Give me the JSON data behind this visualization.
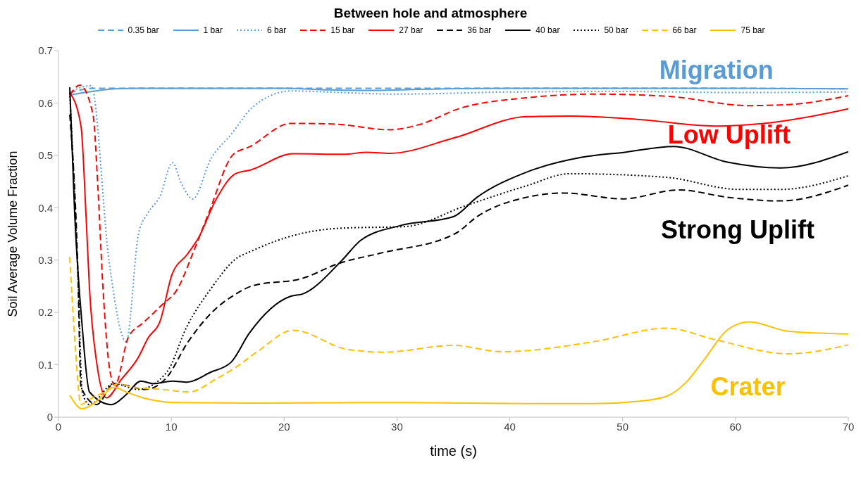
{
  "chart_data": {
    "type": "line",
    "title": "Between hole and atmosphere",
    "xlabel": "time (s)",
    "ylabel": "Soil Average Volume Fraction",
    "xlim": [
      0,
      70
    ],
    "xticks": [
      0,
      10,
      20,
      30,
      40,
      50,
      60,
      70
    ],
    "ylim": [
      0,
      0.7
    ],
    "yticks": [
      0,
      0.1,
      0.2,
      0.3,
      0.4,
      0.5,
      0.6,
      0.7
    ],
    "grid": false,
    "legend": "top",
    "marker": "none",
    "series": [
      {
        "name": "0.35 bar",
        "color": "#5b9bd5",
        "line_style": "dashed",
        "x": [
          1,
          2,
          3,
          5,
          10,
          20,
          30,
          40,
          50,
          60,
          70
        ],
        "values": [
          0.62,
          0.625,
          0.628,
          0.628,
          0.628,
          0.628,
          0.628,
          0.628,
          0.628,
          0.628,
          0.627
        ]
      },
      {
        "name": "1 bar",
        "color": "#5b9bd5",
        "line_style": "solid",
        "x": [
          1,
          2,
          3,
          4,
          5,
          7,
          10,
          20,
          24,
          28,
          32,
          40,
          50,
          60,
          70
        ],
        "values": [
          0.615,
          0.619,
          0.622,
          0.625,
          0.627,
          0.628,
          0.628,
          0.628,
          0.625,
          0.624,
          0.626,
          0.628,
          0.628,
          0.628,
          0.627
        ]
      },
      {
        "name": "6 bar",
        "color": "#5b9bd5",
        "line_style": "dotted",
        "x": [
          1,
          2,
          2.9,
          4.5,
          6,
          7.1,
          7.9,
          9,
          10.1,
          10.9,
          11.9,
          13.5,
          15.3,
          17.2,
          20.6,
          25,
          30,
          40,
          50,
          60,
          70
        ],
        "values": [
          0.62,
          0.63,
          0.633,
          0.295,
          0.144,
          0.351,
          0.389,
          0.422,
          0.486,
          0.446,
          0.417,
          0.493,
          0.54,
          0.592,
          0.623,
          0.62,
          0.617,
          0.621,
          0.622,
          0.62,
          0.621
        ]
      },
      {
        "name": "15 bar",
        "color": "#ff0000",
        "line_style": "dashed",
        "x": [
          1,
          1.9,
          3.06,
          3.5,
          3.94,
          4.57,
          5,
          6.2,
          7.5,
          9.2,
          10.5,
          12,
          13.3,
          15.5,
          16.9,
          20.6,
          24.2,
          29.4,
          32,
          35.6,
          41.5,
          47.4,
          53.9,
          61.2,
          64.7,
          70
        ],
        "values": [
          0.615,
          0.634,
          0.578,
          0.436,
          0.248,
          0.087,
          0.061,
          0.153,
          0.18,
          0.215,
          0.243,
          0.318,
          0.389,
          0.502,
          0.516,
          0.561,
          0.56,
          0.549,
          0.559,
          0.59,
          0.61,
          0.617,
          0.613,
          0.595,
          0.597,
          0.614
        ]
      },
      {
        "name": "27 bar",
        "color": "#ff0000",
        "line_style": "solid",
        "x": [
          1,
          2,
          2.44,
          2.75,
          3.38,
          4.25,
          5.57,
          7.07,
          7.94,
          9,
          10.07,
          11.38,
          12.45,
          13.9,
          15.7,
          17,
          20.8,
          25.3,
          27.3,
          29.4,
          35,
          41.5,
          45.3,
          51.7,
          58.2,
          62.5,
          70
        ],
        "values": [
          0.62,
          0.555,
          0.386,
          0.245,
          0.105,
          0.037,
          0.072,
          0.114,
          0.151,
          0.183,
          0.273,
          0.31,
          0.344,
          0.413,
          0.465,
          0.472,
          0.503,
          0.502,
          0.506,
          0.504,
          0.533,
          0.574,
          0.575,
          0.568,
          0.556,
          0.561,
          0.589
        ]
      },
      {
        "name": "36 bar",
        "color": "#000000",
        "line_style": "dashed",
        "x": [
          1,
          1.7,
          2,
          3.4,
          4.9,
          6.2,
          7.7,
          9.6,
          11.4,
          13.5,
          15.7,
          17.2,
          21.6,
          24.9,
          28.5,
          35.2,
          37.1,
          41.5,
          44.8,
          50,
          55,
          59.3,
          64,
          70
        ],
        "values": [
          0.578,
          0.292,
          0.057,
          0.024,
          0.064,
          0.06,
          0.053,
          0.076,
          0.141,
          0.198,
          0.235,
          0.251,
          0.265,
          0.294,
          0.313,
          0.351,
          0.383,
          0.42,
          0.428,
          0.417,
          0.434,
          0.42,
          0.413,
          0.443
        ]
      },
      {
        "name": "40 bar",
        "color": "#000000",
        "line_style": "solid",
        "x": [
          1,
          1.44,
          2.1,
          2.75,
          4.7,
          6,
          7.3,
          8.4,
          10.1,
          11.4,
          13.5,
          15.3,
          16.9,
          20.6,
          21.6,
          25.1,
          26.8,
          30.3,
          35,
          37.1,
          41.5,
          46.3,
          50.2,
          54.5,
          59.3,
          64,
          70
        ],
        "values": [
          0.63,
          0.386,
          0.174,
          0.048,
          0.024,
          0.043,
          0.069,
          0.064,
          0.069,
          0.067,
          0.086,
          0.105,
          0.16,
          0.231,
          0.235,
          0.299,
          0.338,
          0.366,
          0.383,
          0.42,
          0.468,
          0.496,
          0.506,
          0.517,
          0.487,
          0.476,
          0.507
        ]
      },
      {
        "name": "50 bar",
        "color": "#000000",
        "line_style": "dotted",
        "x": [
          1,
          1.77,
          2.1,
          2.75,
          4.9,
          7.07,
          9.6,
          11.4,
          13.5,
          15.7,
          17.2,
          21,
          25.1,
          30.7,
          36.1,
          41.5,
          45.3,
          53.9,
          60.3,
          64,
          70
        ],
        "values": [
          0.62,
          0.245,
          0.048,
          0.024,
          0.064,
          0.053,
          0.086,
          0.174,
          0.245,
          0.302,
          0.318,
          0.348,
          0.361,
          0.364,
          0.404,
          0.442,
          0.465,
          0.458,
          0.435,
          0.435,
          0.461
        ]
      },
      {
        "name": "66 bar",
        "color": "#ffc000",
        "line_style": "dashed",
        "x": [
          1,
          1.44,
          2,
          2.75,
          4.06,
          5.3,
          6.6,
          9.2,
          11.6,
          13.9,
          15.7,
          17.8,
          20.8,
          25.5,
          28.8,
          35,
          39.3,
          47.4,
          53.9,
          58.2,
          64.7,
          70
        ],
        "values": [
          0.306,
          0.151,
          0.024,
          0.034,
          0.048,
          0.064,
          0.057,
          0.053,
          0.048,
          0.072,
          0.095,
          0.128,
          0.166,
          0.13,
          0.124,
          0.137,
          0.125,
          0.144,
          0.17,
          0.148,
          0.121,
          0.138
        ]
      },
      {
        "name": "75 bar",
        "color": "#ffc000",
        "line_style": "solid",
        "x": [
          1,
          2.1,
          3.6,
          4.9,
          6,
          7.5,
          10.3,
          17.2,
          30.7,
          41.5,
          47.4,
          51.7,
          53.9,
          55.6,
          57.2,
          59.3,
          61.2,
          64.7,
          70
        ],
        "values": [
          0.042,
          0.016,
          0.034,
          0.057,
          0.048,
          0.037,
          0.028,
          0.027,
          0.028,
          0.026,
          0.026,
          0.031,
          0.04,
          0.066,
          0.109,
          0.167,
          0.182,
          0.164,
          0.159
        ]
      }
    ],
    "annotations": [
      "Migration",
      "Low Uplift",
      "Strong Uplift",
      "Crater"
    ]
  }
}
